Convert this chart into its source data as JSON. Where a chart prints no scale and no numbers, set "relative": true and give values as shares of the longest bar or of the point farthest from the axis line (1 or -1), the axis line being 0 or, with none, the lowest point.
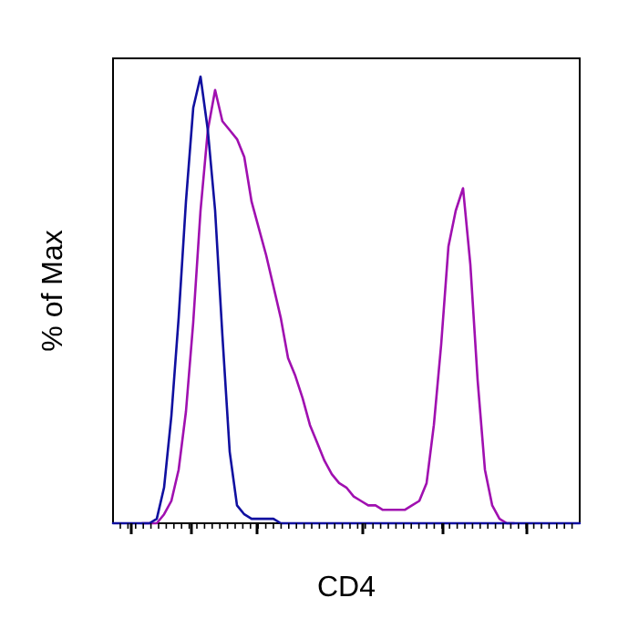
{
  "chart_data": {
    "type": "line",
    "relative": true,
    "xlabel": "CD4",
    "ylabel": "% of Max",
    "categories": [
      null,
      null,
      null,
      null,
      null,
      null,
      null,
      null,
      null,
      null,
      null,
      null,
      null,
      null,
      null,
      null,
      null,
      null,
      null,
      null,
      null,
      null,
      null,
      null,
      null,
      null,
      null,
      null,
      null,
      null,
      null,
      null,
      null,
      null,
      null,
      null,
      null,
      null,
      null,
      null,
      null,
      null,
      null,
      null,
      null,
      null,
      null,
      null,
      null,
      null,
      null,
      null,
      null,
      null,
      null,
      null,
      null,
      null,
      null,
      null,
      null,
      null,
      null,
      null,
      null
    ],
    "series": [
      {
        "color": "#a010b0",
        "values": [
          null,
          null,
          null,
          null,
          0,
          0,
          0,
          0.02,
          0.05,
          0.12,
          0.25,
          0.45,
          0.7,
          0.88,
          0.97,
          0.9,
          0.88,
          0.86,
          0.82,
          0.72,
          0.66,
          0.6,
          0.53,
          0.46,
          0.37,
          0.33,
          0.28,
          0.22,
          0.18,
          0.14,
          0.11,
          0.09,
          0.08,
          0.06,
          0.05,
          0.04,
          0.04,
          0.03,
          0.03,
          0.03,
          0.03,
          0.04,
          0.05,
          0.09,
          0.22,
          0.4,
          0.62,
          0.7,
          0.75,
          0.58,
          0.32,
          0.12,
          0.04,
          0.01,
          0,
          0,
          null,
          null,
          null,
          null,
          null,
          null,
          null,
          null,
          null
        ]
      },
      {
        "color": "#1010a0",
        "values": [
          0,
          0,
          0,
          0,
          0,
          0,
          0.01,
          0.08,
          0.24,
          0.46,
          0.72,
          0.93,
          1,
          0.88,
          0.7,
          0.42,
          0.16,
          0.04,
          0.02,
          0.01,
          0.01,
          0.01,
          0.01,
          0,
          0,
          0,
          0,
          0,
          0,
          0,
          0,
          0,
          0,
          0,
          0,
          0,
          0,
          0,
          0,
          0,
          0,
          0,
          0,
          0,
          0,
          0,
          0,
          0,
          0,
          0,
          0,
          0,
          0,
          0,
          0,
          0,
          0,
          0,
          0,
          0,
          0,
          0,
          0,
          0,
          0
        ]
      }
    ]
  }
}
